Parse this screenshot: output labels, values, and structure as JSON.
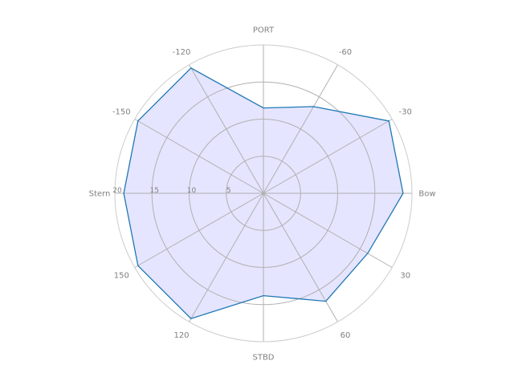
{
  "chart_data": {
    "type": "radar",
    "title": "",
    "directions": [
      "Bow",
      "30",
      "60",
      "STBD",
      "120",
      "150",
      "Stern",
      "-150",
      "-120",
      "PORT",
      "-60",
      "-30"
    ],
    "angles_deg": [
      0,
      30,
      60,
      90,
      120,
      150,
      180,
      -150,
      -120,
      -90,
      -60,
      -30
    ],
    "series": [
      {
        "values": [
          18.8,
          16.2,
          16.8,
          13.8,
          19.5,
          19.5,
          18.8,
          19.5,
          19.5,
          11.5,
          13.5,
          19.5
        ]
      }
    ],
    "radial_ticks": [
      5,
      10,
      15,
      20
    ],
    "radial_tick_labels": [
      "5",
      "10",
      "15",
      "20"
    ],
    "rlim": [
      0,
      20
    ],
    "grid": true,
    "colors": {
      "line": "#1f77b4",
      "fill": "#e5e5ff",
      "grid": "#b0b0b0",
      "outer_ring": "#cccccc",
      "text": "#808080"
    }
  }
}
